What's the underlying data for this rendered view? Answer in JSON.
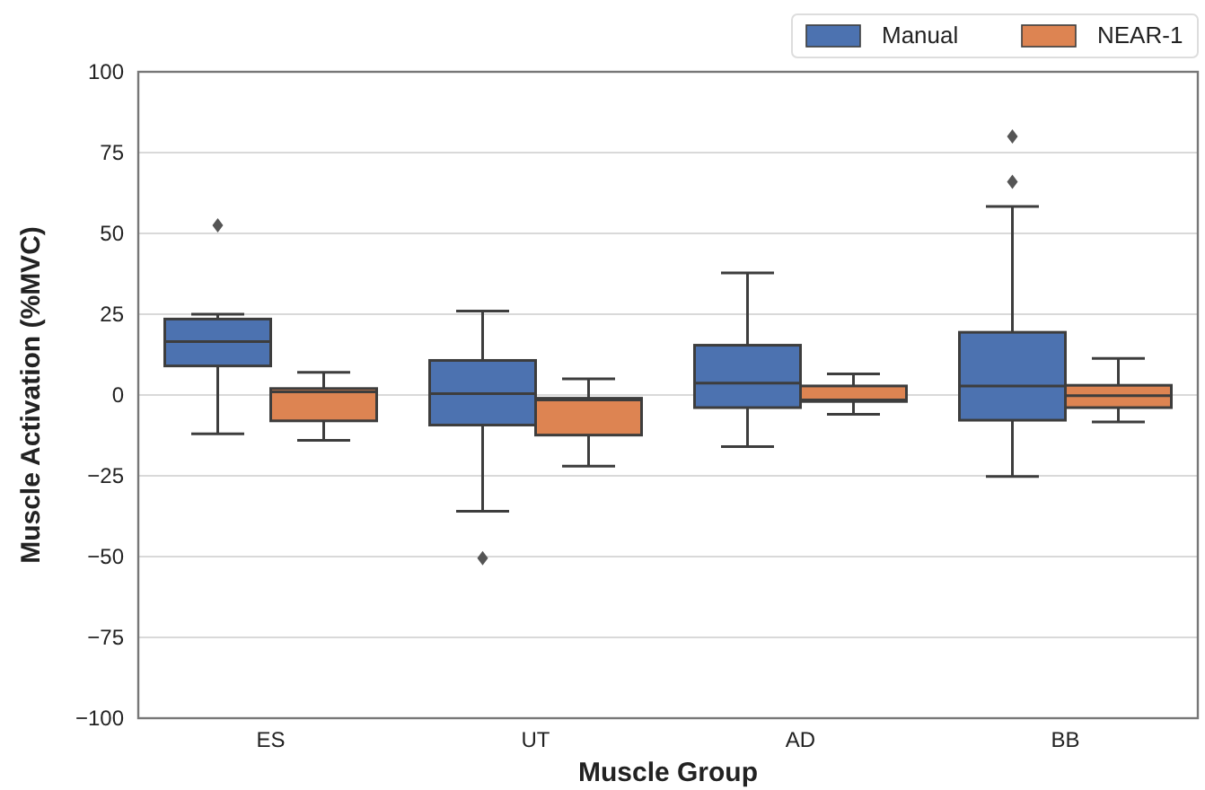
{
  "chart_data": {
    "type": "box",
    "xlabel": "Muscle Group",
    "ylabel": "Muscle Activation (%MVC)",
    "categories": [
      "ES",
      "UT",
      "AD",
      "BB"
    ],
    "ylim": [
      -100,
      100
    ],
    "yticks": [
      {
        "value": -100,
        "label": "−100"
      },
      {
        "value": -75,
        "label": "−75"
      },
      {
        "value": -50,
        "label": "−50"
      },
      {
        "value": -25,
        "label": "−25"
      },
      0,
      25,
      50,
      75,
      100
    ],
    "grid": "y",
    "legend": "top right",
    "series": [
      {
        "name": "Manual",
        "color": "#4c72b0",
        "boxes": [
          {
            "low": -12,
            "q1": 9,
            "median": 16.5,
            "q3": 23.5,
            "high": 25,
            "outliers": [
              52.5
            ]
          },
          {
            "low": -36,
            "q1": -9.3,
            "median": 0.4,
            "q3": 10.7,
            "high": 26,
            "outliers": [
              -50.5
            ]
          },
          {
            "low": -16,
            "q1": -3.9,
            "median": 3.7,
            "q3": 15.4,
            "high": 37.8
          },
          {
            "low": -25.2,
            "q1": -7.8,
            "median": 2.8,
            "q3": 19.4,
            "high": 58.3,
            "outliers": [
              66,
              80
            ]
          }
        ]
      },
      {
        "name": "NEAR-1",
        "color": "#dd8452",
        "boxes": [
          {
            "low": -14,
            "q1": -8,
            "median": 1,
            "q3": 2,
            "high": 7
          },
          {
            "low": -22,
            "q1": -12.4,
            "median": -1.5,
            "q3": -1,
            "high": 5
          },
          {
            "low": -6,
            "q1": -2,
            "median": -1.5,
            "q3": 2.8,
            "high": 6.5
          },
          {
            "low": -8.3,
            "q1": -3.9,
            "median": -0.2,
            "q3": 3,
            "high": 11.3
          }
        ]
      }
    ]
  }
}
